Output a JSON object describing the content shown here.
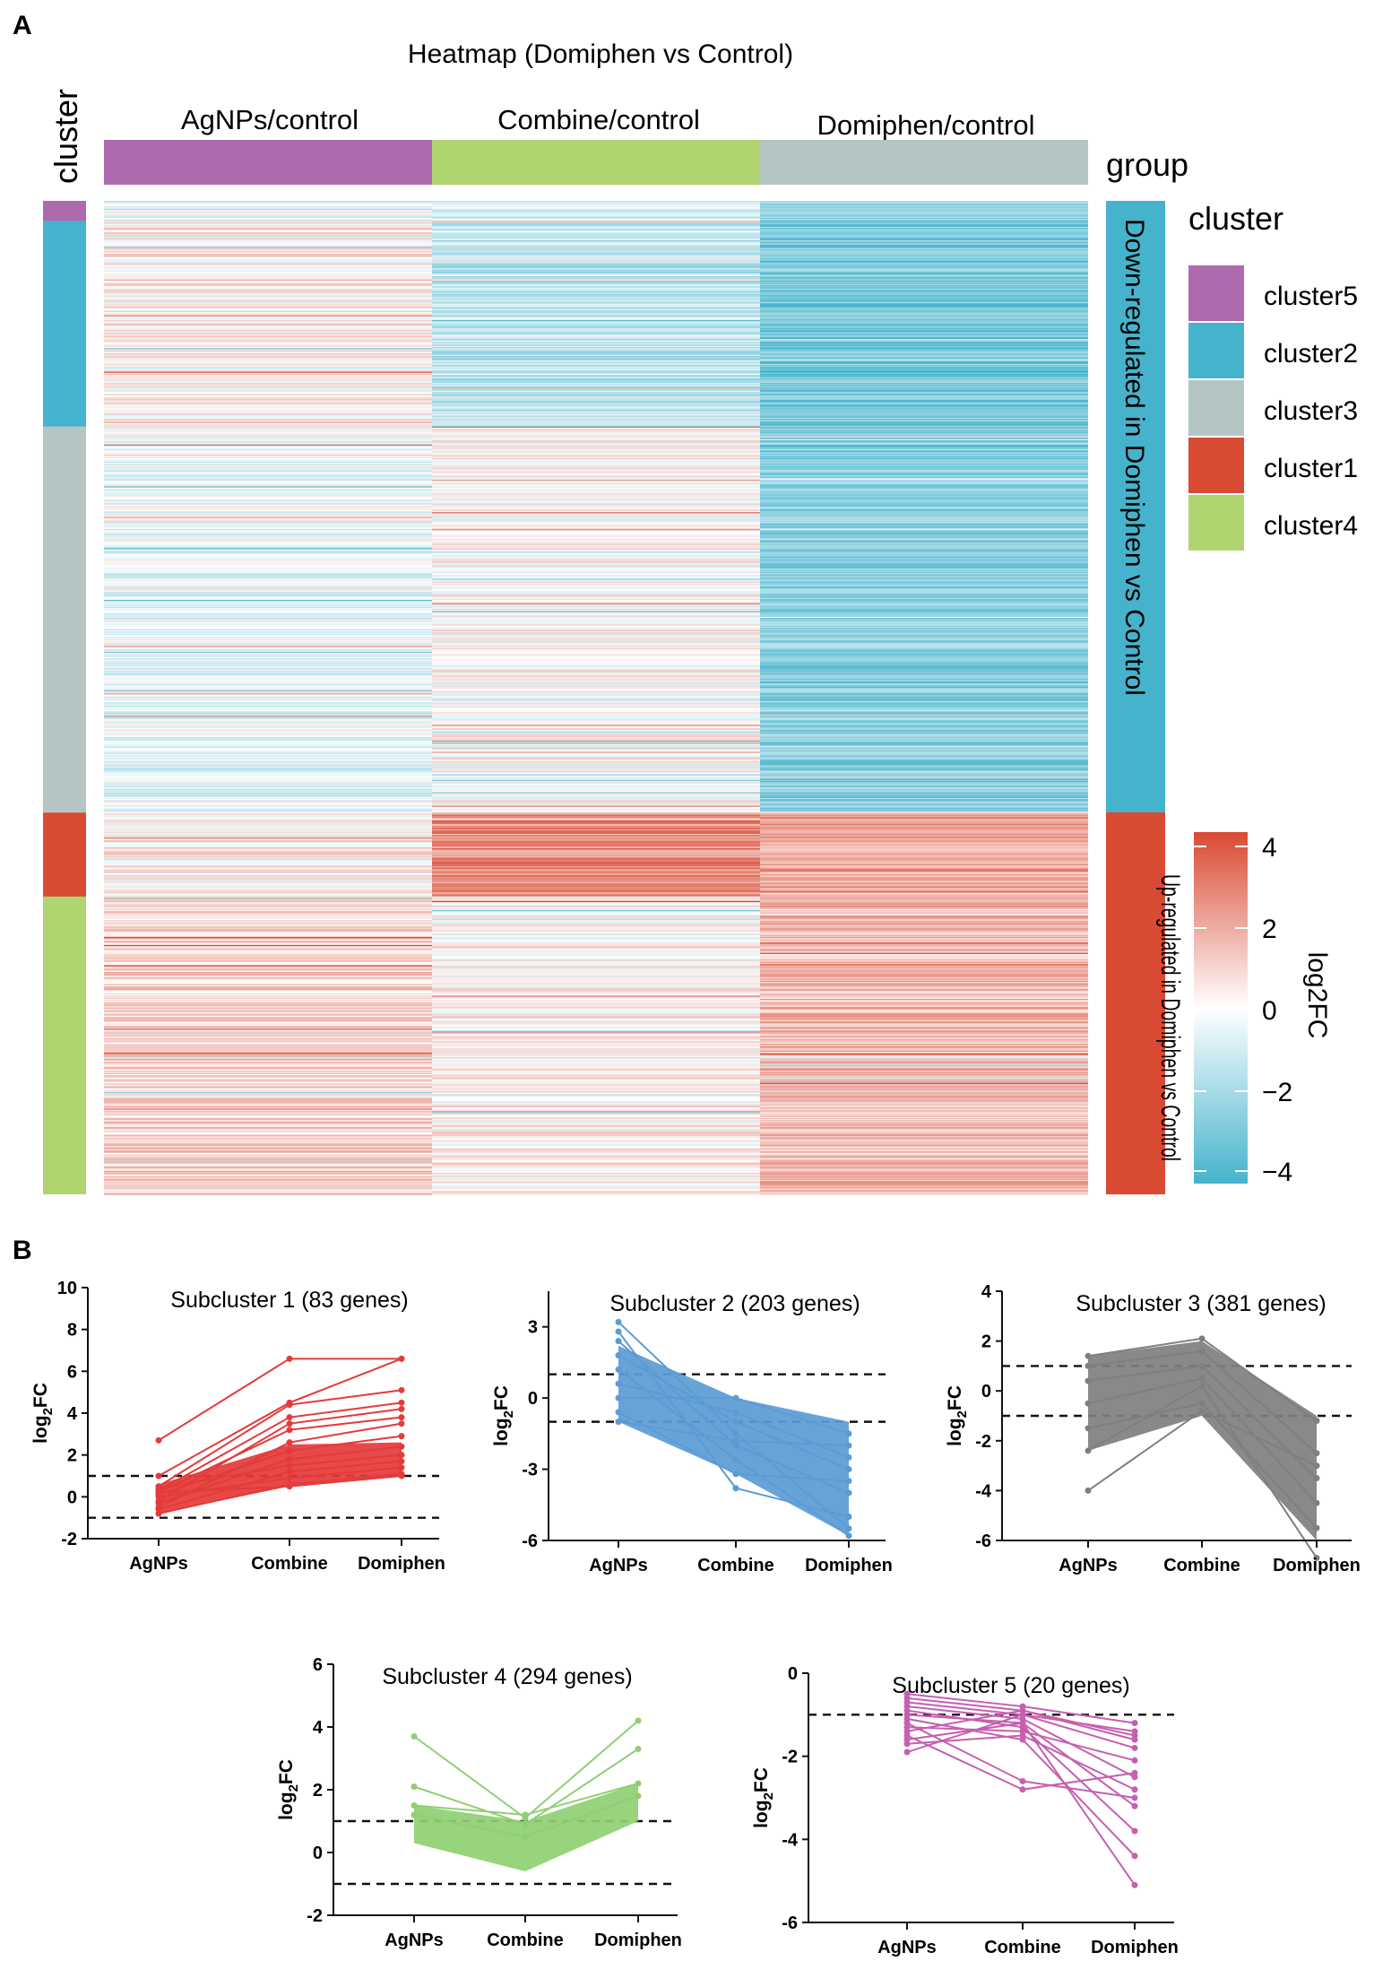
{
  "panel_labels": {
    "a": "A",
    "b": "B"
  },
  "colors": {
    "cluster1": "#d94a33",
    "cluster2": "#45b3cc",
    "cluster3": "#b5c5c3",
    "cluster4": "#b0d470",
    "cluster5": "#ad6aaf",
    "agnps_group": "#ad6aaf",
    "combine_group": "#b0d470",
    "domiphen_group": "#b5c5c3",
    "down_bar": "#45b3cc",
    "up_bar": "#d94a33",
    "sub1": "#e43a3a",
    "sub2": "#5b9bd5",
    "sub3": "#7f7f7f",
    "sub4": "#8fcf72",
    "sub5": "#c55fb0"
  },
  "heatmap": {
    "title": "Heatmap (Domiphen vs Control)",
    "left_label": "cluster",
    "group_label": "group",
    "columns": [
      "AgNPs/control",
      "Combine/control",
      "Domiphen/control"
    ],
    "row_groups": [
      {
        "cluster": "cluster5",
        "genes": 20,
        "means": [
          -0.6,
          -1.2,
          -2.6
        ]
      },
      {
        "cluster": "cluster2",
        "genes": 203,
        "means": [
          0.4,
          -1.6,
          -3.2
        ]
      },
      {
        "cluster": "cluster3",
        "genes": 381,
        "means": [
          -0.5,
          0.1,
          -2.8
        ]
      },
      {
        "cluster": "cluster1",
        "genes": 83,
        "means": [
          0.3,
          2.8,
          2.2
        ]
      },
      {
        "cluster": "cluster4",
        "genes": 294,
        "means": [
          1.0,
          0.3,
          1.6
        ]
      }
    ],
    "side_annotations": [
      "Down-regulated in Domiphen vs Control",
      "Up-regulated in Domiphen vs Control"
    ],
    "legend_title": "cluster",
    "legend_items": [
      "cluster5",
      "cluster2",
      "cluster3",
      "cluster1",
      "cluster4"
    ],
    "colorbar_label": "log2FC",
    "colorbar_ticks": [
      "4",
      "2",
      "0",
      "−2",
      "−4"
    ],
    "colorbar_range": [
      -4.5,
      4.5
    ]
  },
  "chart_data": [
    {
      "type": "line",
      "title": "Subcluster 1 (83 genes)",
      "ylabel": "log2FC",
      "categories": [
        "AgNPs",
        "Combine",
        "Domiphen"
      ],
      "ylim": [
        -2,
        10
      ],
      "yticks": [
        "10",
        "8",
        "6",
        "4",
        "2",
        "0",
        "-2"
      ],
      "thresholds": [
        1,
        -1
      ],
      "series": [
        {
          "values": [
            2.7,
            6.6,
            6.6
          ]
        },
        {
          "values": [
            1.0,
            4.5,
            6.6
          ]
        },
        {
          "values": [
            0.5,
            4.4,
            5.1
          ]
        },
        {
          "values": [
            0.3,
            3.8,
            4.5
          ]
        },
        {
          "values": [
            -0.2,
            3.5,
            4.2
          ]
        },
        {
          "values": [
            0.2,
            3.2,
            3.8
          ]
        },
        {
          "values": [
            -0.5,
            2.6,
            3.5
          ]
        },
        {
          "values": [
            0.1,
            2.2,
            2.9
          ]
        },
        {
          "values": [
            -0.3,
            1.8,
            2.4
          ]
        },
        {
          "values": [
            0.4,
            1.5,
            2.0
          ]
        },
        {
          "values": [
            -0.6,
            1.2,
            1.7
          ]
        },
        {
          "values": [
            0.0,
            0.9,
            1.4
          ]
        },
        {
          "values": [
            -0.8,
            0.6,
            1.1
          ]
        },
        {
          "values": [
            0.2,
            0.5,
            1.0
          ]
        }
      ],
      "band": {
        "from": [
          -0.8,
          0.5,
          1.0
        ],
        "to": [
          0.6,
          2.5,
          2.6
        ]
      }
    },
    {
      "type": "line",
      "title": "Subcluster 2 (203 genes)",
      "ylabel": "log2FC",
      "categories": [
        "AgNPs",
        "Combine",
        "Domiphen"
      ],
      "ylim": [
        -6,
        4.5
      ],
      "yticks": [
        "3",
        "0",
        "-3",
        "-6"
      ],
      "thresholds": [
        1,
        -1
      ],
      "series": [
        {
          "values": [
            3.2,
            -1.5,
            -5.5
          ]
        },
        {
          "values": [
            2.8,
            -3.8,
            -5.0
          ]
        },
        {
          "values": [
            2.4,
            -2.0,
            -4.0
          ]
        },
        {
          "values": [
            1.8,
            -1.0,
            -3.0
          ]
        },
        {
          "values": [
            1.2,
            -2.6,
            -5.8
          ]
        },
        {
          "values": [
            0.6,
            -0.6,
            -2.5
          ]
        },
        {
          "values": [
            0.0,
            0.0,
            -1.5
          ]
        },
        {
          "values": [
            -0.6,
            -3.2,
            -3.5
          ]
        },
        {
          "values": [
            -1.0,
            -1.8,
            -2.0
          ]
        }
      ],
      "band": {
        "from": [
          -1.0,
          -3.2,
          -5.8
        ],
        "to": [
          2.2,
          0.0,
          -1.0
        ]
      }
    },
    {
      "type": "line",
      "title": "Subcluster 3 (381 genes)",
      "ylabel": "log2FC",
      "categories": [
        "AgNPs",
        "Combine",
        "Domiphen"
      ],
      "ylim": [
        -6,
        4
      ],
      "yticks": [
        "4",
        "2",
        "0",
        "-2",
        "-4",
        "-6"
      ],
      "thresholds": [
        1,
        -1
      ],
      "series": [
        {
          "values": [
            1.4,
            2.1,
            -1.2
          ]
        },
        {
          "values": [
            1.0,
            1.6,
            -2.5
          ]
        },
        {
          "values": [
            0.4,
            1.0,
            -3.5
          ]
        },
        {
          "values": [
            -0.5,
            0.5,
            -4.5
          ]
        },
        {
          "values": [
            -1.5,
            -0.5,
            -5.5
          ]
        },
        {
          "values": [
            -2.4,
            0.2,
            -6.7
          ]
        },
        {
          "values": [
            -4.0,
            -0.8,
            -3.0
          ]
        }
      ],
      "band": {
        "from": [
          -2.4,
          -1.0,
          -6.0
        ],
        "to": [
          1.4,
          2.0,
          -1.0
        ]
      }
    },
    {
      "type": "line",
      "title": "Subcluster 4 (294 genes)",
      "ylabel": "log2FC",
      "categories": [
        "AgNPs",
        "Combine",
        "Domiphen"
      ],
      "ylim": [
        -2,
        6
      ],
      "yticks": [
        "6",
        "4",
        "2",
        "0",
        "-2"
      ],
      "thresholds": [
        1,
        -1
      ],
      "series": [
        {
          "values": [
            3.7,
            1.1,
            4.2
          ]
        },
        {
          "values": [
            2.1,
            0.9,
            3.3
          ]
        },
        {
          "values": [
            1.5,
            1.2,
            2.2
          ]
        },
        {
          "values": [
            1.2,
            0.5,
            1.8
          ]
        }
      ],
      "band": {
        "from": [
          0.3,
          -0.6,
          1.0
        ],
        "to": [
          1.5,
          1.0,
          2.2
        ]
      }
    },
    {
      "type": "line",
      "title": "Subcluster 5 (20 genes)",
      "ylabel": "log2FC",
      "categories": [
        "AgNPs",
        "Combine",
        "Domiphen"
      ],
      "ylim": [
        -6,
        0
      ],
      "yticks": [
        "0",
        "-2",
        "-4",
        "-6"
      ],
      "thresholds": [
        -1
      ],
      "series": [
        {
          "values": [
            -0.5,
            -0.8,
            -1.2
          ]
        },
        {
          "values": [
            -0.6,
            -0.9,
            -1.5
          ]
        },
        {
          "values": [
            -0.7,
            -1.0,
            -1.8
          ]
        },
        {
          "values": [
            -0.8,
            -1.1,
            -2.5
          ]
        },
        {
          "values": [
            -0.9,
            -1.3,
            -3.8
          ]
        },
        {
          "values": [
            -1.0,
            -1.2,
            -5.1
          ]
        },
        {
          "values": [
            -1.1,
            -1.6,
            -4.4
          ]
        },
        {
          "values": [
            -1.2,
            -2.6,
            -3.0
          ]
        },
        {
          "values": [
            -1.3,
            -1.4,
            -2.1
          ]
        },
        {
          "values": [
            -1.4,
            -0.9,
            -1.6
          ]
        },
        {
          "values": [
            -1.5,
            -2.8,
            -2.4
          ]
        },
        {
          "values": [
            -1.6,
            -1.2,
            -3.2
          ]
        },
        {
          "values": [
            -1.7,
            -1.5,
            -2.8
          ]
        },
        {
          "values": [
            -1.9,
            -1.0,
            -1.4
          ]
        }
      ]
    }
  ]
}
